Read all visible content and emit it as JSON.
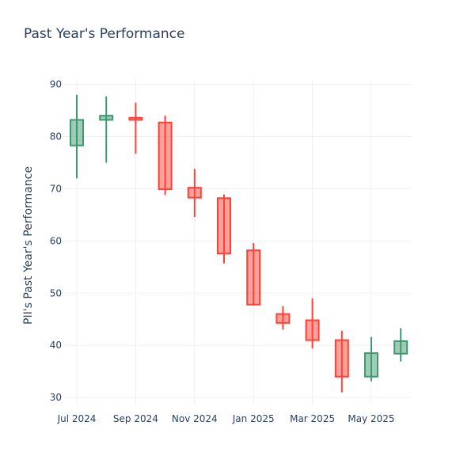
{
  "chart_data": {
    "type": "candlestick",
    "title": "Past Year's Performance",
    "ylabel": "PII's Past Year's Performance",
    "xlabel": "",
    "ylim": [
      28.5,
      91
    ],
    "yticks": [
      30,
      40,
      50,
      60,
      70,
      80,
      90
    ],
    "xticks": [
      "Jul 2024",
      "Sep 2024",
      "Nov 2024",
      "Jan 2025",
      "Mar 2025",
      "May 2025"
    ],
    "xtick_months": [
      0,
      2,
      4,
      6,
      8,
      10
    ],
    "grid": true,
    "colors": {
      "increasing": "#3d9970",
      "decreasing": "#ff4136"
    },
    "candles": [
      {
        "month": 0,
        "open": 78.3,
        "high": 88.0,
        "low": 72.0,
        "close": 83.2
      },
      {
        "month": 1,
        "open": 83.2,
        "high": 87.7,
        "low": 75.0,
        "close": 84.0
      },
      {
        "month": 2,
        "open": 83.6,
        "high": 86.5,
        "low": 76.7,
        "close": 83.2
      },
      {
        "month": 3,
        "open": 82.7,
        "high": 84.0,
        "low": 68.8,
        "close": 69.9
      },
      {
        "month": 4,
        "open": 70.2,
        "high": 73.8,
        "low": 64.6,
        "close": 68.3
      },
      {
        "month": 5,
        "open": 68.2,
        "high": 68.9,
        "low": 55.7,
        "close": 57.6
      },
      {
        "month": 6,
        "open": 58.2,
        "high": 59.6,
        "low": 47.6,
        "close": 47.8
      },
      {
        "month": 7,
        "open": 46.0,
        "high": 47.5,
        "low": 43.0,
        "close": 44.3
      },
      {
        "month": 8,
        "open": 44.8,
        "high": 49.0,
        "low": 39.4,
        "close": 41.0
      },
      {
        "month": 9,
        "open": 41.0,
        "high": 42.8,
        "low": 31.0,
        "close": 34.0
      },
      {
        "month": 10,
        "open": 34.0,
        "high": 41.6,
        "low": 33.1,
        "close": 38.5
      },
      {
        "month": 11,
        "open": 38.4,
        "high": 43.3,
        "low": 36.9,
        "close": 40.8
      }
    ]
  }
}
